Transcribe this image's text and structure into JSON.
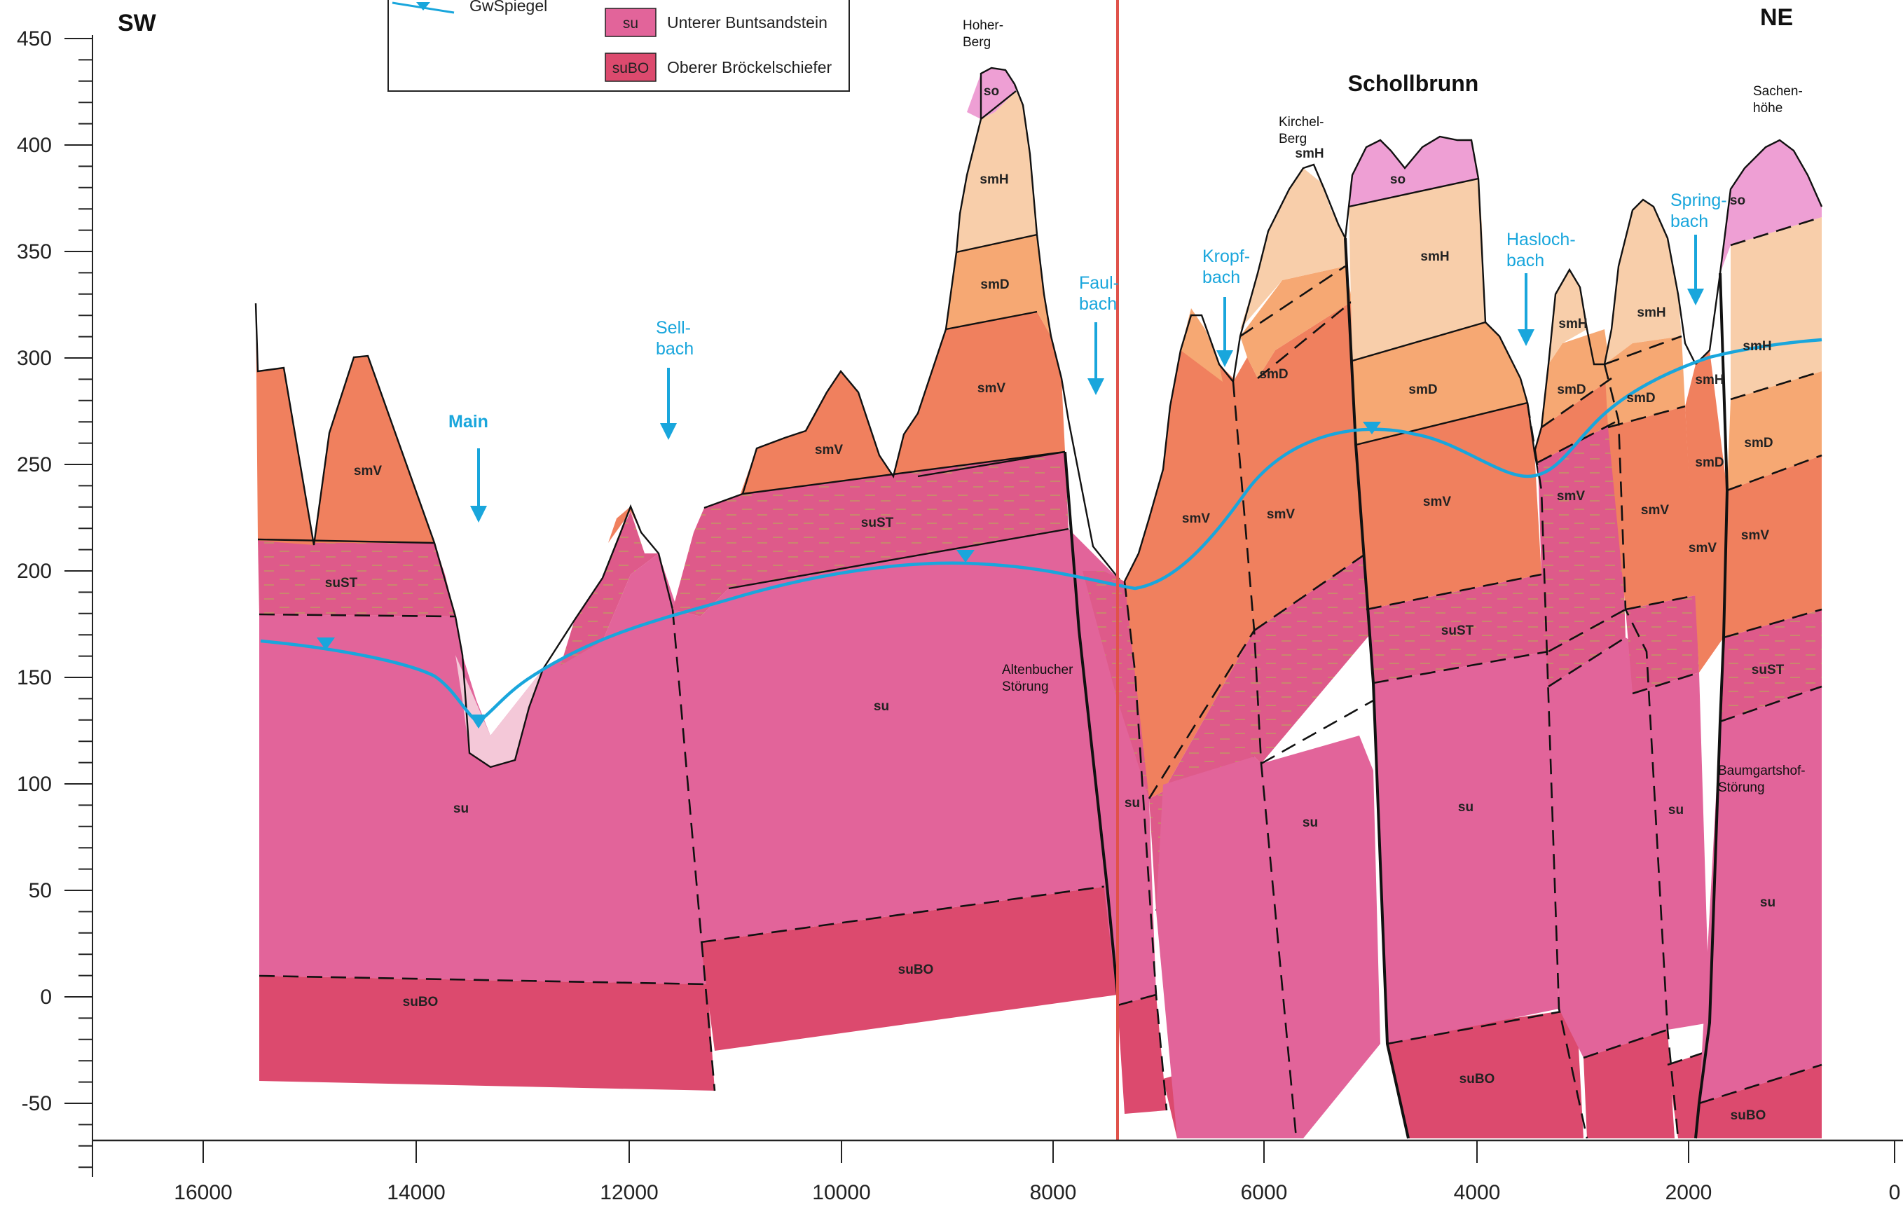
{
  "directions": {
    "left": "SW",
    "right": "NE"
  },
  "axes": {
    "y_ticks": [
      "450",
      "400",
      "350",
      "300",
      "250",
      "200",
      "150",
      "100",
      "50",
      "0",
      "-50"
    ],
    "x_ticks": [
      "16000",
      "14000",
      "12000",
      "10000",
      "8000",
      "6000",
      "4000",
      "2000",
      "0"
    ]
  },
  "legend": {
    "groundwater_label": "GwSpiegel",
    "items": [
      {
        "code": "su",
        "label": "Unterer Buntsandstein",
        "color": "#e2649a"
      },
      {
        "code": "suBO",
        "label": "Oberer Bröckelschiefer",
        "color": "#dc4a6e"
      }
    ]
  },
  "peaks": {
    "hoher_berg": [
      "Hoher-",
      "Berg"
    ],
    "kirchel_berg": [
      "Kirchel-",
      "Berg"
    ],
    "sachenhoehe": [
      "Sachen-",
      "höhe"
    ],
    "schollbrunn": "Schollbrunn"
  },
  "streams": {
    "main": "Main",
    "sellbach": [
      "Sell-",
      "bach"
    ],
    "faulbach": [
      "Faul-",
      "bach"
    ],
    "kropfbach": [
      "Kropf-",
      "bach"
    ],
    "haslochbach": [
      "Hasloch-",
      "bach"
    ],
    "springbach": [
      "Spring-",
      "bach"
    ]
  },
  "faults": {
    "altenbucher": [
      "Altenbucher",
      "Störung"
    ],
    "baumgartshof": [
      "Baumgartshof-",
      "Störung"
    ]
  },
  "units": {
    "so": "so",
    "smH": "smH",
    "smD": "smD",
    "smV": "smV",
    "suST": "suST",
    "su": "su",
    "suBO": "suBO"
  },
  "colors": {
    "so": "#ee9fd4",
    "smH": "#f8ceaa",
    "smD": "#f6a873",
    "smV": "#f0805e",
    "suST": "#de5a8a",
    "su": "#e2649a",
    "suBO": "#dc4a6e",
    "groundwater": "#19a6dc",
    "section_marker": "#e0524a",
    "alluvium": "#f4c8d8"
  }
}
